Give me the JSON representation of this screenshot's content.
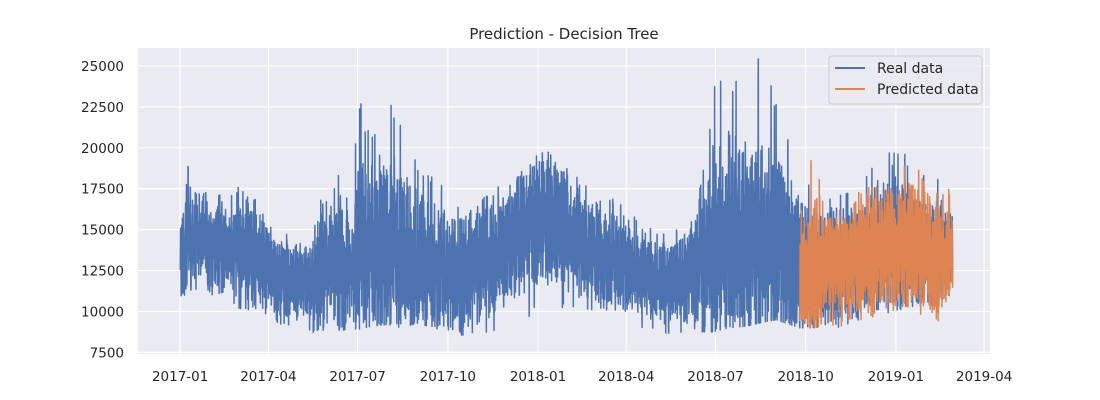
{
  "chart_data": {
    "type": "line",
    "title": "Prediction - Decision Tree",
    "xlabel": "",
    "ylabel": "",
    "xlim": [
      "2016-11-19",
      "2019-04-07"
    ],
    "ylim": [
      7400,
      26100
    ],
    "x_ticks": [
      "2017-01",
      "2017-04",
      "2017-07",
      "2017-10",
      "2018-01",
      "2018-04",
      "2018-07",
      "2018-10",
      "2019-01",
      "2019-04"
    ],
    "x_tick_dates": [
      "2017-01-01",
      "2017-04-01",
      "2017-07-01",
      "2017-10-01",
      "2018-01-01",
      "2018-04-01",
      "2018-07-01",
      "2018-10-01",
      "2019-01-01",
      "2019-04-01"
    ],
    "y_ticks": [
      7500,
      10000,
      12500,
      15000,
      17500,
      20000,
      22500,
      25000
    ],
    "grid": true,
    "legend_position": "top-right",
    "series": [
      {
        "name": "Real data",
        "color": "#4c72b0",
        "x_range": [
          "2017-01-01",
          "2019-02-28"
        ],
        "x": [
          "2017-01-01",
          "2017-01-08",
          "2017-01-15",
          "2017-01-22",
          "2017-02-01",
          "2017-02-15",
          "2017-03-01",
          "2017-03-15",
          "2017-04-01",
          "2017-04-15",
          "2017-05-01",
          "2017-05-15",
          "2017-05-25",
          "2017-06-01",
          "2017-06-15",
          "2017-06-25",
          "2017-07-01",
          "2017-07-15",
          "2017-08-01",
          "2017-08-15",
          "2017-09-01",
          "2017-09-15",
          "2017-10-01",
          "2017-10-15",
          "2017-11-01",
          "2017-11-15",
          "2017-12-01",
          "2017-12-15",
          "2018-01-01",
          "2018-01-15",
          "2018-02-01",
          "2018-02-15",
          "2018-03-01",
          "2018-03-15",
          "2018-04-01",
          "2018-04-15",
          "2018-05-01",
          "2018-05-15",
          "2018-06-01",
          "2018-06-15",
          "2018-07-01",
          "2018-07-15",
          "2018-08-01",
          "2018-08-15",
          "2018-09-01",
          "2018-09-15",
          "2018-09-25",
          "2018-10-15",
          "2018-11-01",
          "2018-11-15",
          "2018-12-01",
          "2018-12-15",
          "2019-01-01",
          "2019-01-15",
          "2019-02-01",
          "2019-02-15",
          "2019-02-28"
        ],
        "max": [
          17000,
          19300,
          18300,
          17700,
          17200,
          17900,
          17800,
          17400,
          16500,
          15000,
          14300,
          14300,
          19900,
          16000,
          19600,
          15000,
          23500,
          20500,
          23300,
          21500,
          19000,
          18200,
          17500,
          18000,
          17000,
          18000,
          17500,
          18700,
          20400,
          19500,
          19000,
          18000,
          17500,
          17200,
          16200,
          15500,
          15200,
          14800,
          15500,
          17500,
          24200,
          24500,
          24000,
          25600,
          23000,
          20500,
          18500,
          17600,
          17000,
          17800,
          18500,
          19500,
          20500,
          19200,
          18500,
          18200,
          17800
        ],
        "min": [
          10600,
          10900,
          11400,
          11200,
          11000,
          10800,
          10200,
          10000,
          9800,
          9000,
          8800,
          8700,
          8800,
          9000,
          8800,
          9000,
          8900,
          9100,
          9200,
          9000,
          9300,
          9000,
          8800,
          8500,
          8300,
          8700,
          9200,
          9400,
          10000,
          10000,
          10100,
          10000,
          9800,
          9500,
          9200,
          9000,
          8800,
          8600,
          8500,
          8600,
          8800,
          9000,
          9100,
          9300,
          9500,
          9200,
          9000,
          9000,
          8900,
          9200,
          9400,
          9700,
          10000,
          10200,
          10300,
          10500,
          11000
        ],
        "mid": [
          13500,
          14200,
          14500,
          14300,
          14000,
          14300,
          14000,
          13500,
          12800,
          12000,
          11800,
          12000,
          12500,
          12800,
          13000,
          12500,
          13800,
          14000,
          14200,
          13500,
          13000,
          12800,
          12500,
          12500,
          12800,
          13500,
          14000,
          14800,
          15800,
          15500,
          14500,
          14000,
          13500,
          13200,
          12800,
          12300,
          12000,
          11800,
          12200,
          13000,
          14000,
          14500,
          14300,
          14800,
          14000,
          13300,
          12800,
          12500,
          12800,
          13200,
          13500,
          14200,
          14500,
          14000,
          13800,
          13500,
          13500
        ]
      },
      {
        "name": "Predicted data",
        "color": "#dd8452",
        "x_range": [
          "2018-09-25",
          "2019-02-28"
        ],
        "x": [
          "2018-09-25",
          "2018-10-01",
          "2018-10-10",
          "2018-10-20",
          "2018-11-01",
          "2018-11-15",
          "2018-12-01",
          "2018-12-15",
          "2019-01-01",
          "2019-01-15",
          "2019-02-01",
          "2019-02-15",
          "2019-02-28"
        ],
        "max": [
          21000,
          17500,
          21100,
          16000,
          16200,
          17000,
          17600,
          18200,
          18800,
          19500,
          18000,
          17500,
          17600
        ],
        "min": [
          9400,
          9000,
          9000,
          9200,
          9000,
          9300,
          9500,
          9800,
          10000,
          10200,
          9400,
          9300,
          11500
        ],
        "mid": [
          13000,
          12800,
          12500,
          12700,
          12800,
          13200,
          13500,
          14000,
          14200,
          14000,
          13500,
          13300,
          13500
        ]
      }
    ]
  }
}
